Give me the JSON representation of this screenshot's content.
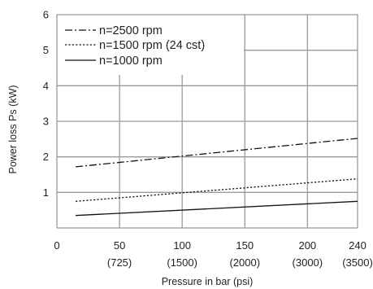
{
  "chart_data": {
    "type": "line",
    "title": "",
    "xlabel": "Pressure in bar (psi)",
    "ylabel": "Power loss Ps (kW)",
    "xlim": [
      0,
      240
    ],
    "ylim": [
      0,
      6
    ],
    "grid": true,
    "legend_position": "top-left",
    "x_ticks": [
      {
        "value": 0,
        "label": "0",
        "sublabel": ""
      },
      {
        "value": 50,
        "label": "50",
        "sublabel": "(725)"
      },
      {
        "value": 100,
        "label": "100",
        "sublabel": "(1500)"
      },
      {
        "value": 150,
        "label": "150",
        "sublabel": "(2000)"
      },
      {
        "value": 200,
        "label": "200",
        "sublabel": "(3000)"
      },
      {
        "value": 240,
        "label": "240",
        "sublabel": "(3500)"
      }
    ],
    "y_ticks": [
      {
        "value": 1,
        "label": "1"
      },
      {
        "value": 2,
        "label": "2"
      },
      {
        "value": 3,
        "label": "3"
      },
      {
        "value": 4,
        "label": "4"
      },
      {
        "value": 5,
        "label": "5"
      },
      {
        "value": 6,
        "label": "6"
      }
    ],
    "series": [
      {
        "name": "n=2500 rpm",
        "style": "dash-dot",
        "x": [
          15,
          240
        ],
        "y": [
          1.72,
          2.52
        ]
      },
      {
        "name": "n=1500 rpm (24 cst)",
        "style": "dotted",
        "x": [
          15,
          240
        ],
        "y": [
          0.75,
          1.38
        ]
      },
      {
        "name": "n=1000 rpm",
        "style": "solid",
        "x": [
          15,
          240
        ],
        "y": [
          0.35,
          0.75
        ]
      }
    ]
  }
}
